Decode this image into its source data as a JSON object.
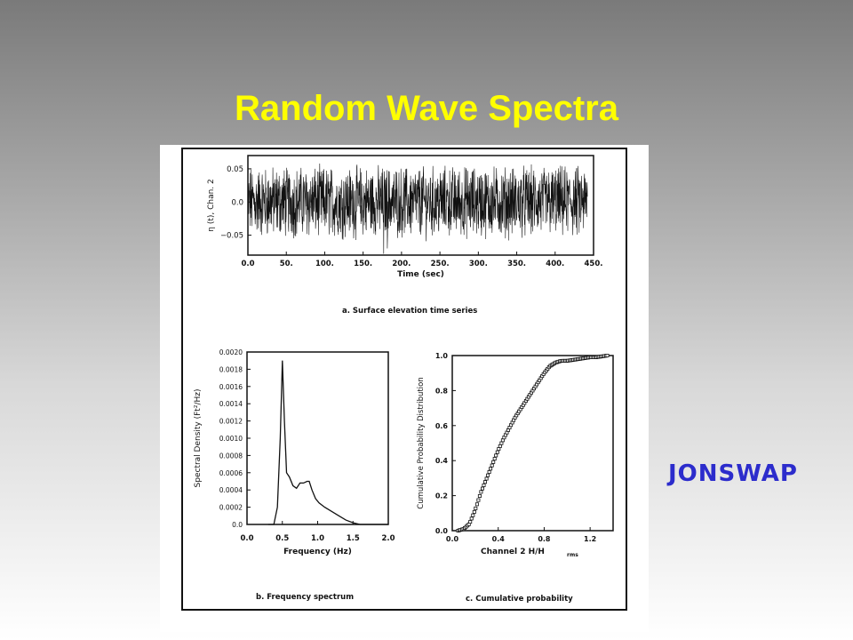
{
  "slide": {
    "title": "Random Wave Spectra",
    "side_label": "JONSWAP",
    "title_color": "#ffff00",
    "side_label_color": "#2c2ccc"
  },
  "chart_data": [
    {
      "id": "a",
      "type": "line",
      "caption": "a.   Surface elevation time series",
      "xlabel": "Time (sec)",
      "ylabel": "η (t),  Chan. 2",
      "xlim": [
        0,
        450
      ],
      "ylim": [
        -0.08,
        0.07
      ],
      "x_ticks": [
        "0.0",
        "50.",
        "100.",
        "150.",
        "200.",
        "250.",
        "300.",
        "350.",
        "400.",
        "450."
      ],
      "y_ticks": [
        "0.05",
        "0.0",
        "−0.05"
      ],
      "y_tick_values": [
        0.05,
        0.0,
        -0.05
      ],
      "series_description": "dense random signal, amplitude about ±0.05, with spikes near t=180"
    },
    {
      "id": "b",
      "type": "line",
      "caption": "b.   Frequency spectrum",
      "xlabel": "Frequency (Hz)",
      "ylabel": "Spectral Density (Ft²/Hz)",
      "xlim": [
        0,
        2.0
      ],
      "ylim": [
        0,
        0.002
      ],
      "x_ticks": [
        "0.0",
        "0.5",
        "1.0",
        "1.5",
        "2.0"
      ],
      "y_ticks": [
        "0.0",
        "0.0002",
        "0.0004",
        "0.0006",
        "0.0008",
        "0.0010",
        "0.0012",
        "0.0014",
        "0.0016",
        "0.0018",
        "0.0020"
      ],
      "x": [
        0.3,
        0.38,
        0.43,
        0.47,
        0.5,
        0.53,
        0.56,
        0.6,
        0.65,
        0.7,
        0.75,
        0.8,
        0.85,
        0.88,
        0.92,
        0.97,
        1.02,
        1.1,
        1.2,
        1.3,
        1.4,
        1.5,
        1.6,
        1.8,
        2.0
      ],
      "y": [
        0.0,
        0.0,
        0.0002,
        0.001,
        0.0019,
        0.0012,
        0.0006,
        0.00055,
        0.00045,
        0.00042,
        0.00048,
        0.00048,
        0.0005,
        0.0005,
        0.0004,
        0.0003,
        0.00025,
        0.0002,
        0.00015,
        0.0001,
        5e-05,
        2e-05,
        0.0,
        0.0,
        0.0
      ]
    },
    {
      "id": "c",
      "type": "scatter",
      "caption": "c.   Cumulative probability",
      "xlabel": "Channel 2   H/H",
      "xlabel_sub": "rms",
      "ylabel": "Cumulative Probability Distribution",
      "xlim": [
        0,
        1.4
      ],
      "ylim": [
        0,
        1.0
      ],
      "x_ticks": [
        "0.0",
        "0.4",
        "0.8",
        "1.2"
      ],
      "x_tick_values": [
        0.0,
        0.4,
        0.8,
        1.2
      ],
      "y_ticks": [
        "0.0",
        "0.2",
        "0.4",
        "0.6",
        "0.8",
        "1.0"
      ],
      "cdf_x": [
        0.05,
        0.1,
        0.15,
        0.2,
        0.25,
        0.3,
        0.35,
        0.4,
        0.45,
        0.5,
        0.55,
        0.6,
        0.65,
        0.7,
        0.75,
        0.8,
        0.85,
        0.9,
        0.95,
        1.0,
        1.05,
        1.1,
        1.15,
        1.2,
        1.25,
        1.3,
        1.35
      ],
      "cdf_y": [
        0.0,
        0.01,
        0.04,
        0.12,
        0.22,
        0.3,
        0.38,
        0.46,
        0.53,
        0.59,
        0.65,
        0.7,
        0.75,
        0.8,
        0.85,
        0.9,
        0.94,
        0.96,
        0.97,
        0.97,
        0.975,
        0.98,
        0.985,
        0.99,
        0.99,
        0.995,
        1.0
      ]
    }
  ]
}
